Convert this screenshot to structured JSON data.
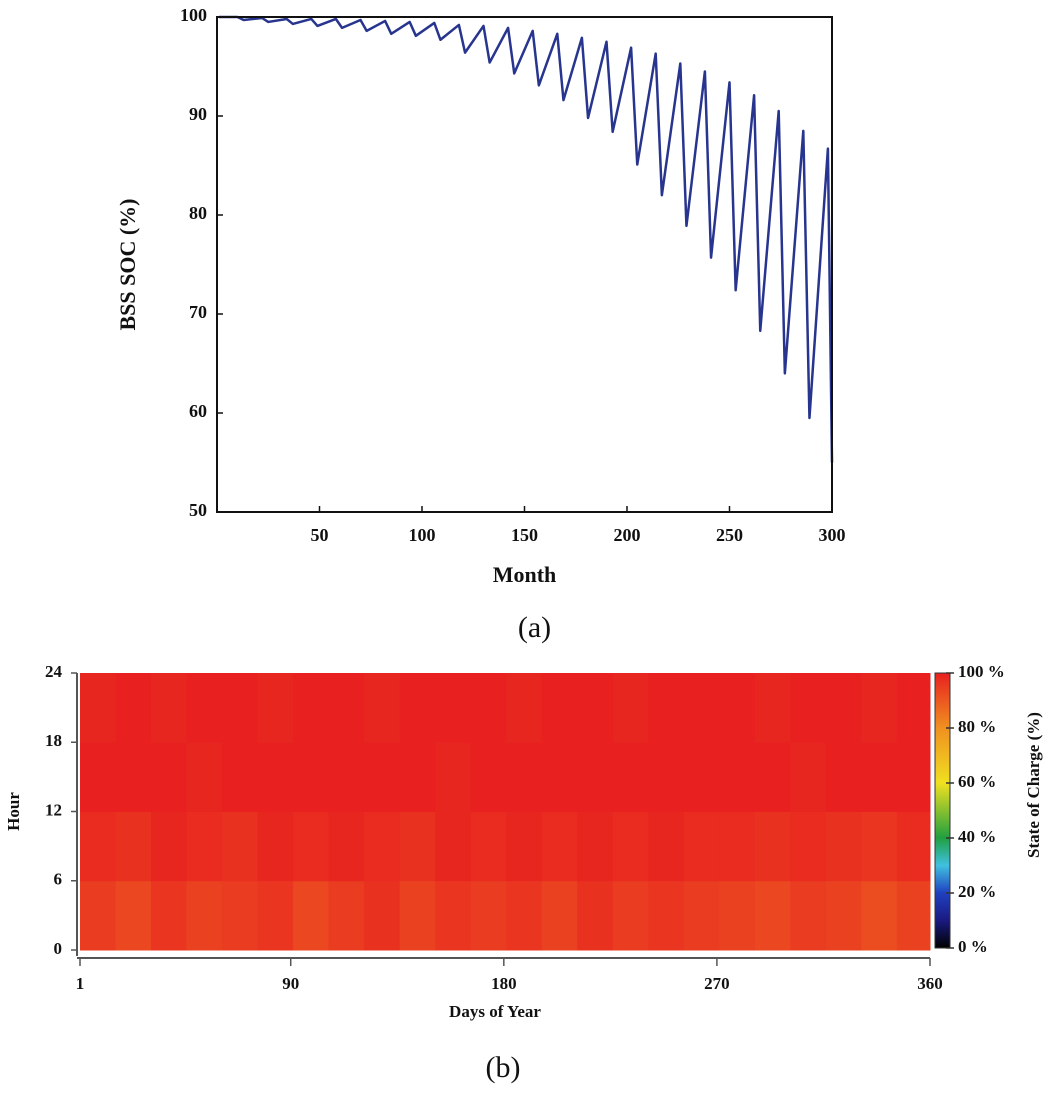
{
  "chart_data": [
    {
      "type": "line",
      "caption": "(a)",
      "x_label": "Month",
      "y_label": "BSS SOC (%)",
      "xlim": [
        0,
        300
      ],
      "ylim": [
        50,
        100
      ],
      "xticks": [
        50,
        100,
        150,
        200,
        250,
        300
      ],
      "yticks": [
        50,
        60,
        70,
        80,
        90,
        100
      ],
      "color": "#28358f",
      "x": [
        1,
        10,
        13,
        22,
        25,
        34,
        37,
        46,
        49,
        58,
        61,
        70,
        73,
        82,
        85,
        94,
        97,
        106,
        109,
        118,
        121,
        130,
        133,
        142,
        145,
        154,
        157,
        166,
        169,
        178,
        181,
        190,
        193,
        202,
        205,
        214,
        217,
        226,
        229,
        238,
        241,
        250,
        253,
        262,
        265,
        274,
        277,
        286,
        289,
        298,
        300
      ],
      "values": [
        100,
        100,
        99.7,
        99.9,
        99.5,
        99.8,
        99.3,
        99.8,
        99.1,
        99.8,
        98.9,
        99.7,
        98.6,
        99.6,
        98.3,
        99.5,
        98.1,
        99.4,
        97.7,
        99.2,
        96.4,
        99.1,
        95.4,
        98.9,
        94.3,
        98.6,
        93.1,
        98.3,
        91.6,
        97.9,
        89.8,
        97.5,
        88.4,
        96.9,
        85.1,
        96.3,
        82,
        95.3,
        78.9,
        94.5,
        75.7,
        93.4,
        72.4,
        92.1,
        68.3,
        90.5,
        64,
        88.5,
        59.5,
        86.7,
        55
      ]
    },
    {
      "type": "heatmap",
      "caption": "(b)",
      "x_label": "Days of Year",
      "y_label": "Hour",
      "colorbar_label": "State of Charge (%)",
      "xlim": [
        1,
        360
      ],
      "ylim": [
        0,
        24
      ],
      "xticks": [
        1,
        90,
        180,
        270,
        360
      ],
      "yticks": [
        0,
        6,
        12,
        18,
        24
      ],
      "clim": [
        0,
        100
      ],
      "cticks": [
        {
          "value": 0,
          "label": "0 %"
        },
        {
          "value": 20,
          "label": "20 %"
        },
        {
          "value": 40,
          "label": "40 %"
        },
        {
          "value": 60,
          "label": "60 %"
        },
        {
          "value": 80,
          "label": "80 %"
        },
        {
          "value": 100,
          "label": "100 %"
        }
      ],
      "colorscale": [
        [
          0,
          "#000000"
        ],
        [
          10,
          "#1a1a80"
        ],
        [
          20,
          "#2040c0"
        ],
        [
          30,
          "#40c0e0"
        ],
        [
          40,
          "#20a040"
        ],
        [
          60,
          "#f0e020"
        ],
        [
          80,
          "#f09020"
        ],
        [
          100,
          "#e82020"
        ]
      ],
      "xbins": [
        1,
        16,
        31,
        46,
        61,
        76,
        91,
        106,
        121,
        136,
        151,
        166,
        181,
        196,
        211,
        226,
        241,
        256,
        271,
        286,
        301,
        316,
        331,
        346,
        360
      ],
      "ybins": [
        0,
        6,
        12,
        18,
        24
      ],
      "z": [
        [
          95,
          93,
          96,
          94,
          95,
          96,
          93,
          95,
          97,
          94,
          96,
          95,
          96,
          94,
          97,
          95,
          96,
          95,
          94,
          93,
          95,
          94,
          92,
          94
        ],
        [
          98,
          97,
          99,
          98,
          97,
          99,
          98,
          99,
          98,
          97,
          99,
          98,
          99,
          98,
          99,
          98,
          99,
          98,
          98,
          97,
          98,
          97,
          96,
          98
        ],
        [
          100,
          100,
          100,
          99,
          100,
          100,
          100,
          100,
          100,
          100,
          99,
          100,
          100,
          100,
          100,
          100,
          100,
          100,
          100,
          100,
          99,
          100,
          100,
          100
        ],
        [
          99,
          100,
          99,
          100,
          100,
          99,
          100,
          100,
          99,
          100,
          100,
          100,
          99,
          100,
          100,
          99,
          100,
          100,
          100,
          99,
          100,
          100,
          99,
          100
        ]
      ]
    }
  ]
}
